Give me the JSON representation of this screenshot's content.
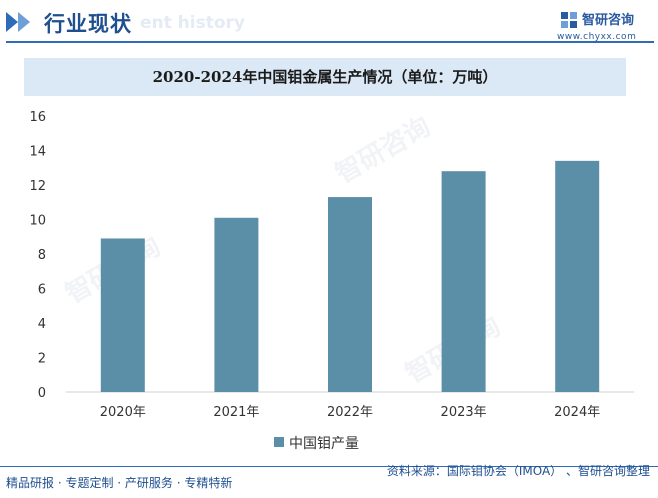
{
  "header": {
    "title": "行业现状",
    "subtitle": "ent history",
    "logo_name": "智研咨询",
    "logo_url": "www.chyxx.com"
  },
  "watermark": "智研咨询",
  "colors": {
    "bar": "#5b8fa8",
    "accent": "#2f6bb7",
    "title_band": "#dbe8f5"
  },
  "chart_data": {
    "type": "bar",
    "title": "2020-2024年中国钼金属生产情况（单位：万吨）",
    "categories": [
      "2020年",
      "2021年",
      "2022年",
      "2023年",
      "2024年"
    ],
    "series": [
      {
        "name": "中国钼产量",
        "values": [
          8.9,
          10.1,
          11.3,
          12.8,
          13.4
        ]
      }
    ],
    "ylim": [
      0,
      16
    ],
    "yticks": [
      0,
      2,
      4,
      6,
      8,
      10,
      12,
      14,
      16
    ],
    "xlabel": "",
    "ylabel": "",
    "grid": false,
    "legend": "bottom-center"
  },
  "footer": {
    "left": "精品研报 · 专题定制 · 产研服务 · 专精特新",
    "right": "资料来源：国际钼协会（IMOA）  、智研咨询整理"
  }
}
